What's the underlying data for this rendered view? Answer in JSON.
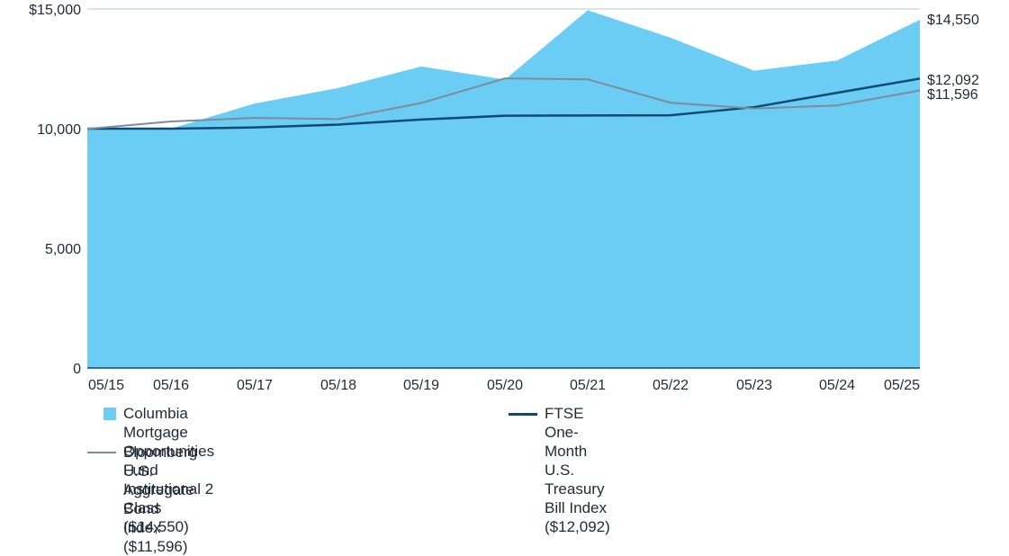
{
  "chart_data": {
    "type": "area",
    "title": "",
    "xlabel": "",
    "ylabel": "",
    "categories": [
      "05/15",
      "05/16",
      "05/17",
      "05/18",
      "05/19",
      "05/20",
      "05/21",
      "05/22",
      "05/23",
      "05/24",
      "05/25"
    ],
    "ylim": [
      0,
      15000
    ],
    "yticks": [
      {
        "value": 0,
        "label": "0"
      },
      {
        "value": 5000,
        "label": "5,000"
      },
      {
        "value": 10000,
        "label": "10,000"
      },
      {
        "value": 15000,
        "label": "$15,000"
      }
    ],
    "grid": false,
    "legend_position": "bottom",
    "series": [
      {
        "name": "Columbia Mortgage Opportunities Fund Institutional 2 Class ($14,550)",
        "legend_line1": "Columbia Mortgage Opportunities Fund",
        "legend_line2": "Institutional 2 Class ($14,550)",
        "style": "area",
        "color": "#6ccdf4",
        "values": [
          10000,
          10000,
          11050,
          11700,
          12600,
          12050,
          14950,
          13800,
          12420,
          12850,
          14550
        ],
        "end_label": "$14,550"
      },
      {
        "name": "FTSE One-Month U.S. Treasury Bill Index ($12,092)",
        "style": "line",
        "color": "#0b4a73",
        "values": [
          10000,
          10000,
          10050,
          10170,
          10380,
          10540,
          10550,
          10560,
          10900,
          11500,
          12092
        ],
        "end_label": "$12,092"
      },
      {
        "name": "Bloomberg U.S. Aggregate Bond Index ($11,596)",
        "style": "line",
        "color": "#7a8c9e",
        "values": [
          10000,
          10300,
          10450,
          10400,
          11070,
          12100,
          12060,
          11080,
          10840,
          10970,
          11596
        ],
        "end_label": "$11,596"
      }
    ]
  }
}
